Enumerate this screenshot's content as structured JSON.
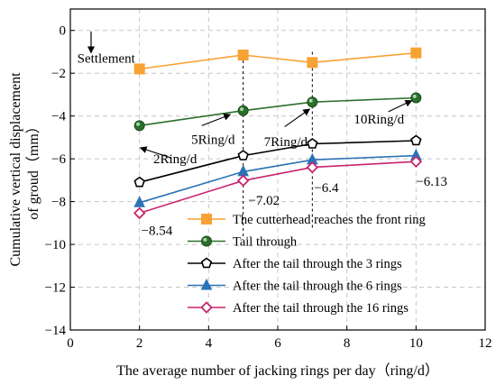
{
  "chart_data": {
    "type": "line",
    "xlabel": "The average number of jacking rings per day（ring/d）",
    "ylabel_lines": [
      "Cumulative vertical displacement",
      "of groud（mm）"
    ],
    "xlim": [
      0,
      12
    ],
    "ylim": [
      -14,
      1
    ],
    "xticks": [
      0,
      2,
      4,
      6,
      8,
      10,
      12
    ],
    "yticks": [
      0,
      -2,
      -4,
      -6,
      -8,
      -10,
      -12,
      -14
    ],
    "grid": true,
    "legend_position": "bottom-right",
    "x": [
      2,
      5,
      7,
      10
    ],
    "series": [
      {
        "name": "The cutterhead reaches the front ring",
        "values": [
          -1.8,
          -1.15,
          -1.5,
          -1.05
        ],
        "color": "#f7a235",
        "marker": "square"
      },
      {
        "name": "Tail through",
        "values": [
          -4.45,
          -3.75,
          -3.35,
          -3.15
        ],
        "color": "#2c6e2c",
        "marker": "circle"
      },
      {
        "name": "After the tail through the 3 rings",
        "values": [
          -7.1,
          -5.85,
          -5.3,
          -5.15
        ],
        "color": "#000000",
        "marker": "pentagon"
      },
      {
        "name": "After the tail through the 6 rings",
        "values": [
          -8.05,
          -6.6,
          -6.05,
          -5.85
        ],
        "color": "#2a72b5",
        "marker": "triangle"
      },
      {
        "name": "After the tail through the 16 rings",
        "values": [
          -8.54,
          -7.02,
          -6.4,
          -6.13
        ],
        "color": "#c8246e",
        "marker": "diamond"
      }
    ],
    "annotations": [
      {
        "text": "Settlement",
        "x": 0.2,
        "y": -1.5
      },
      {
        "text": "2Ring/d",
        "x": 2.4,
        "y": -6.2
      },
      {
        "text": "5Ring/d",
        "x": 3.5,
        "y": -5.3
      },
      {
        "text": "7Ring/d",
        "x": 5.6,
        "y": -5.4
      },
      {
        "text": "10Ring/d",
        "x": 8.2,
        "y": -4.35
      },
      {
        "text": "−8.54",
        "x": 2.05,
        "y": -9.55
      },
      {
        "text": "−7.02",
        "x": 5.15,
        "y": -8.15
      },
      {
        "text": "−6.4",
        "x": 7.05,
        "y": -7.55
      },
      {
        "text": "−6.13",
        "x": 10.0,
        "y": -7.25
      }
    ]
  }
}
